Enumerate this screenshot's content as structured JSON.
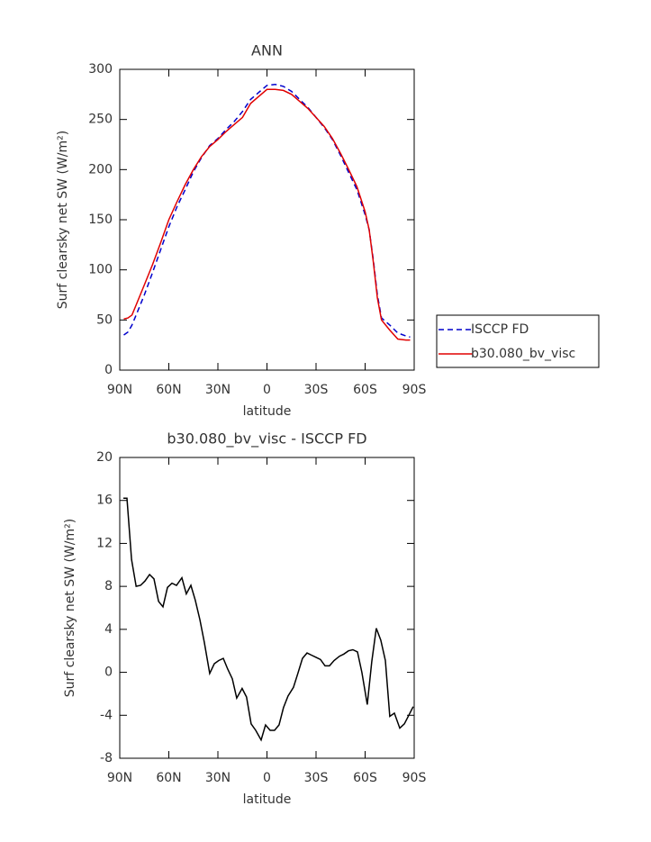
{
  "chart_data": [
    {
      "type": "line",
      "title": "ANN",
      "xlabel": "latitude",
      "ylabel": "Surf clearsky net SW (W/m²)",
      "x": [
        87.5,
        85,
        82.5,
        80,
        75,
        70,
        65,
        60,
        55,
        50,
        45,
        40,
        35,
        30,
        25,
        20,
        15,
        10,
        5,
        0,
        -5,
        -10,
        -15,
        -20,
        -25,
        -30,
        -35,
        -40,
        -45,
        -50,
        -55,
        -60,
        -62.5,
        -65,
        -67.5,
        -70,
        -75,
        -80,
        -85,
        -87.5
      ],
      "series": [
        {
          "name": "ISCCP FD",
          "color": "#0000cc",
          "linestyle": "dashed",
          "values": [
            35,
            38,
            45,
            55,
            75,
            97,
            120,
            143,
            163,
            180,
            198,
            212,
            224,
            231,
            240,
            248,
            258,
            270,
            277,
            284,
            285,
            283,
            278,
            270,
            262,
            252,
            242,
            230,
            214,
            197,
            180,
            155,
            140,
            110,
            75,
            52,
            45,
            37,
            34,
            33
          ]
        },
        {
          "name": "b30.080_bv_visc",
          "color": "#e00000",
          "linestyle": "solid",
          "values": [
            51,
            52,
            55,
            65,
            85,
            105,
            127,
            150,
            168,
            185,
            200,
            213,
            223,
            230,
            238,
            245,
            252,
            266,
            273,
            280,
            280,
            279,
            275,
            268,
            261,
            252,
            243,
            231,
            216,
            200,
            183,
            158,
            140,
            108,
            72,
            50,
            40,
            31,
            30,
            30
          ]
        }
      ],
      "xlim": [
        90,
        -90
      ],
      "xticks": [
        {
          "value": 90,
          "label": "90N"
        },
        {
          "value": 60,
          "label": "60N"
        },
        {
          "value": 30,
          "label": "30N"
        },
        0,
        {
          "value": -30,
          "label": "30S"
        },
        {
          "value": -60,
          "label": "60S"
        },
        {
          "value": -90,
          "label": "90S"
        }
      ],
      "ylim": [
        0,
        300
      ],
      "yticks": [
        0,
        50,
        100,
        150,
        200,
        250,
        300
      ],
      "legend": "right"
    },
    {
      "type": "line",
      "title": "b30.080_bv_visc - ISCCP FD",
      "xlabel": "latitude",
      "ylabel": "Surf clearsky net SW (W/m²)",
      "x": [
        87.8,
        85.6,
        82.8,
        80,
        77.3,
        74.6,
        71.8,
        69.1,
        66.3,
        63.6,
        60.8,
        58.1,
        55.3,
        52,
        49.3,
        46.5,
        43.8,
        41,
        38.3,
        35,
        32.2,
        29.5,
        26.7,
        24,
        21.2,
        18.5,
        15.2,
        12.5,
        9.7,
        6.9,
        3.6,
        0.9,
        -1.9,
        -4.6,
        -7.4,
        -10.1,
        -12.9,
        -16.2,
        -18.9,
        -21.7,
        -24.5,
        -27.2,
        -30,
        -32.7,
        -35.5,
        -38.2,
        -41,
        -44.3,
        -47,
        -49.8,
        -52.5,
        -55.3,
        -58,
        -61.3,
        -64.1,
        -66.8,
        -69.6,
        -72.4,
        -75.1,
        -77.9,
        -81.2,
        -84,
        -86.7,
        -89.4
      ],
      "series": [
        {
          "color": "#000000",
          "linestyle": "solid",
          "values": [
            16.2,
            16.2,
            10.5,
            8,
            8.1,
            8.5,
            9.1,
            8.7,
            6.6,
            6.1,
            7.9,
            8.3,
            8.1,
            8.8,
            7.3,
            8.1,
            6.7,
            4.9,
            2.8,
            -0.1,
            0.8,
            1.1,
            1.3,
            0.3,
            -0.6,
            -2.4,
            -1.5,
            -2.3,
            -4.8,
            -5.4,
            -6.3,
            -4.9,
            -5.4,
            -5.4,
            -4.9,
            -3.3,
            -2.2,
            -1.4,
            -0.1,
            1.3,
            1.8,
            1.6,
            1.4,
            1.2,
            0.6,
            0.6,
            1.1,
            1.5,
            1.7,
            2,
            2.1,
            1.9,
            0,
            -3,
            1,
            4.1,
            3,
            1.1,
            -4.1,
            -3.8,
            -5.2,
            -4.8,
            -4,
            -3.2
          ]
        }
      ],
      "xlim": [
        90,
        -90
      ],
      "xticks": [
        {
          "value": 90,
          "label": "90N"
        },
        {
          "value": 60,
          "label": "60N"
        },
        {
          "value": 30,
          "label": "30N"
        },
        0,
        {
          "value": -30,
          "label": "30S"
        },
        {
          "value": -60,
          "label": "60S"
        },
        {
          "value": -90,
          "label": "90S"
        }
      ],
      "ylim": [
        -8,
        20
      ],
      "yticks": [
        -8,
        -4,
        0,
        4,
        8,
        12,
        16,
        20
      ]
    }
  ]
}
